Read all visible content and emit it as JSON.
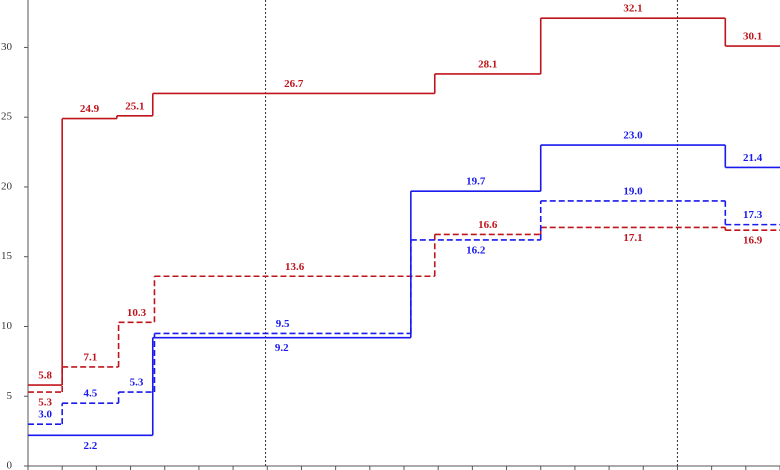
{
  "chart_data": {
    "type": "step",
    "xlim": [
      0,
      22
    ],
    "xticks": [
      0,
      1,
      2,
      3,
      4,
      5,
      6,
      7,
      8,
      9,
      10,
      11,
      12,
      13,
      14,
      15,
      16,
      17,
      18,
      19,
      20,
      21,
      22
    ],
    "ylim": [
      0,
      33.4
    ],
    "yticks": [
      0,
      5,
      10,
      15,
      20,
      25,
      30
    ],
    "vlines": [
      6.95,
      19
    ],
    "series": [
      {
        "color": "#c0141c",
        "dash": false,
        "x": [
          0,
          1,
          2.6,
          3.65,
          11.9,
          15,
          20.4
        ],
        "values": [
          5.8,
          24.9,
          25.1,
          26.7,
          28.1,
          32.1,
          30.1
        ]
      },
      {
        "color": "#c0141c",
        "dash": true,
        "x": [
          0,
          1,
          2.65,
          3.7,
          11.9,
          15,
          20.4
        ],
        "values": [
          5.3,
          7.1,
          10.3,
          13.6,
          16.6,
          17.1,
          16.9
        ]
      },
      {
        "color": "#1a1aee",
        "dash": false,
        "x": [
          0,
          3.65,
          11.2,
          15,
          20.4
        ],
        "values": [
          2.2,
          9.2,
          19.7,
          23,
          21.4
        ],
        "value_labels": [
          "2.2",
          "9.2",
          "19.7",
          "23.0",
          "21.4"
        ]
      },
      {
        "color": "#1a1aee",
        "dash": true,
        "x": [
          0,
          1,
          2.65,
          3.7,
          11.2,
          15,
          20.4
        ],
        "values": [
          3,
          4.5,
          5.3,
          9.5,
          16.2,
          19,
          17.3
        ],
        "value_labels": [
          "3.0",
          "4.5",
          "5.3",
          "9.5",
          "16.2",
          "19.0",
          "17.3"
        ]
      }
    ]
  }
}
